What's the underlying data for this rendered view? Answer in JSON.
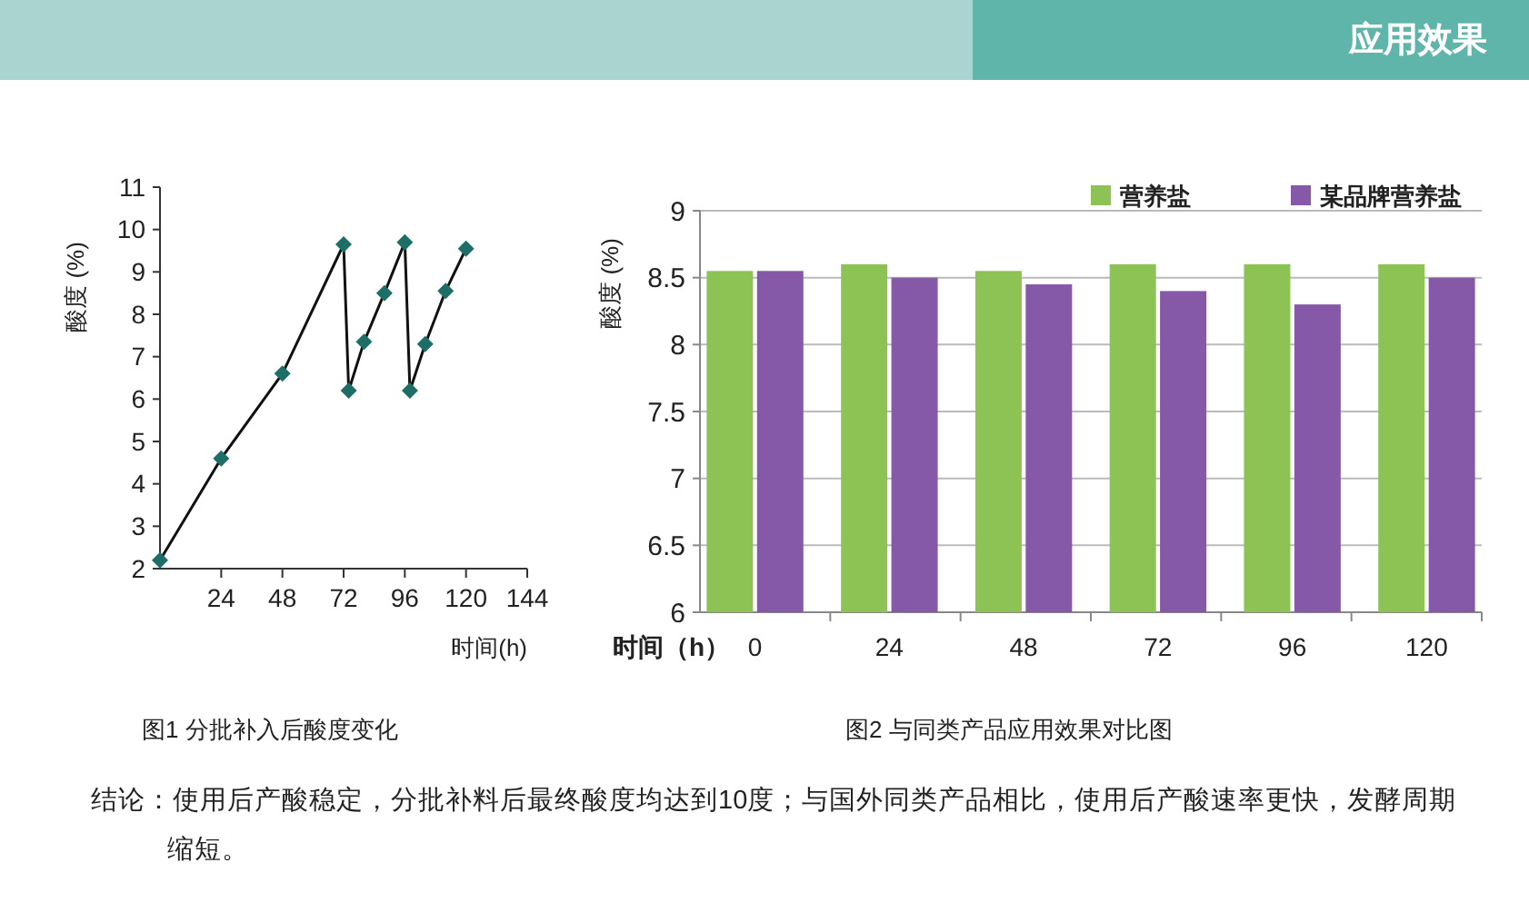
{
  "chart_data": [
    {
      "type": "line",
      "xlabel": "时间(h)",
      "ylabel": "酸度 (%)",
      "annotations": [
        "图1 分批补入后酸度变化"
      ],
      "xlim": [
        0,
        144
      ],
      "ylim": [
        2,
        11
      ],
      "xticks": [
        24,
        48,
        72,
        96,
        120,
        144
      ],
      "yticks": [
        2,
        3,
        4,
        5,
        6,
        7,
        8,
        9,
        10,
        11
      ],
      "marker": "diamond",
      "grid": false,
      "series": [
        {
          "color": "#1d6e66",
          "x": [
            0,
            24,
            48,
            72,
            74,
            80,
            88,
            96,
            98,
            104,
            112,
            120
          ],
          "values": [
            2.2,
            4.6,
            6.6,
            9.65,
            6.2,
            7.35,
            8.5,
            9.7,
            6.2,
            7.3,
            8.55,
            9.55
          ]
        }
      ]
    },
    {
      "type": "bar",
      "xlabel": "时间（h）",
      "ylabel": "酸度 (%)",
      "annotations": [
        "图2 与同类产品应用效果对比图"
      ],
      "categories": [
        "0",
        "24",
        "48",
        "72",
        "96",
        "120"
      ],
      "ylim": [
        6,
        9
      ],
      "yticks": [
        6,
        6.5,
        7,
        7.5,
        8,
        8.5,
        9
      ],
      "grid": "y",
      "legend": "top right",
      "series": [
        {
          "name": "营养盐",
          "color": "#8dc255",
          "values": [
            8.55,
            8.6,
            8.55,
            8.6,
            8.6,
            8.6
          ]
        },
        {
          "name": "某品牌营养盐",
          "color": "#8658a8",
          "values": [
            8.55,
            8.5,
            8.45,
            8.4,
            8.3,
            8.5
          ]
        }
      ]
    },
    {
      "type": "other",
      "title": "应用效果",
      "annotations": [
        "结论：使用后产酸稳定，分批补料后最终酸度均达到10度；与国外同类产品相比，使用后产酸速率更快，发酵周期缩短。"
      ]
    }
  ]
}
